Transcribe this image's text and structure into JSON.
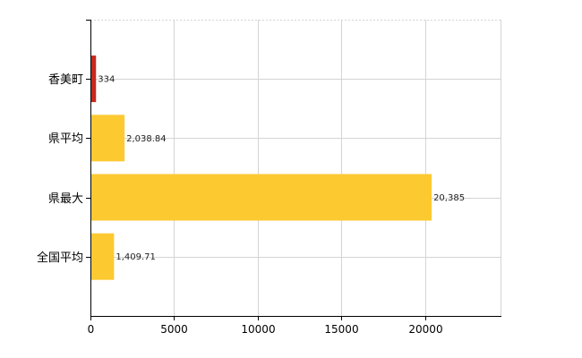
{
  "chart_data": {
    "type": "bar",
    "orientation": "horizontal",
    "categories": [
      "香美町",
      "県平均",
      "県最大",
      "全国平均"
    ],
    "values": [
      334,
      2038.84,
      20385,
      1409.71
    ],
    "value_labels": [
      "334",
      "2,038.84",
      "20,385",
      "1,409.71"
    ],
    "bar_colors": [
      "#c8281e",
      "#fcc931",
      "#fcc931",
      "#fcc931"
    ],
    "xlim": [
      0,
      24500
    ],
    "x_ticks": [
      0,
      5000,
      10000,
      15000,
      20000
    ],
    "x_tick_labels": [
      "0",
      "5000",
      "10000",
      "15000",
      "20000"
    ],
    "grid": true,
    "title": "",
    "xlabel": "",
    "ylabel": ""
  }
}
